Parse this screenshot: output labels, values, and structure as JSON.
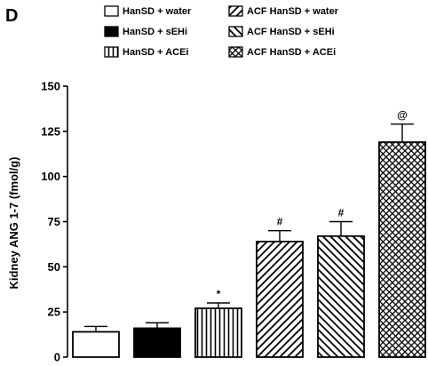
{
  "panel_label": "D",
  "chart_data": {
    "type": "bar",
    "ylabel": "Kidney ANG 1-7 (fmol/g)",
    "xlabel": "",
    "ylim": [
      0,
      150
    ],
    "yticks": [
      0,
      25,
      50,
      75,
      100,
      125,
      150
    ],
    "grid": false,
    "legend_position": "top",
    "series": [
      {
        "name": "HanSD + water",
        "value": 14,
        "error": 3,
        "pattern": "open",
        "significance": ""
      },
      {
        "name": "HanSD + sEHi",
        "value": 16,
        "error": 3,
        "pattern": "solid",
        "significance": ""
      },
      {
        "name": "HanSD + ACEi",
        "value": 27,
        "error": 3,
        "pattern": "vertical",
        "significance": "*"
      },
      {
        "name": "ACF HanSD + water",
        "value": 64,
        "error": 6,
        "pattern": "diag-right",
        "significance": "#"
      },
      {
        "name": "ACF HanSD + sEHi",
        "value": 67,
        "error": 8,
        "pattern": "diag-left",
        "significance": "#"
      },
      {
        "name": "ACF HanSD + ACEi",
        "value": 119,
        "error": 10,
        "pattern": "crosshatch",
        "significance": "@"
      }
    ]
  }
}
